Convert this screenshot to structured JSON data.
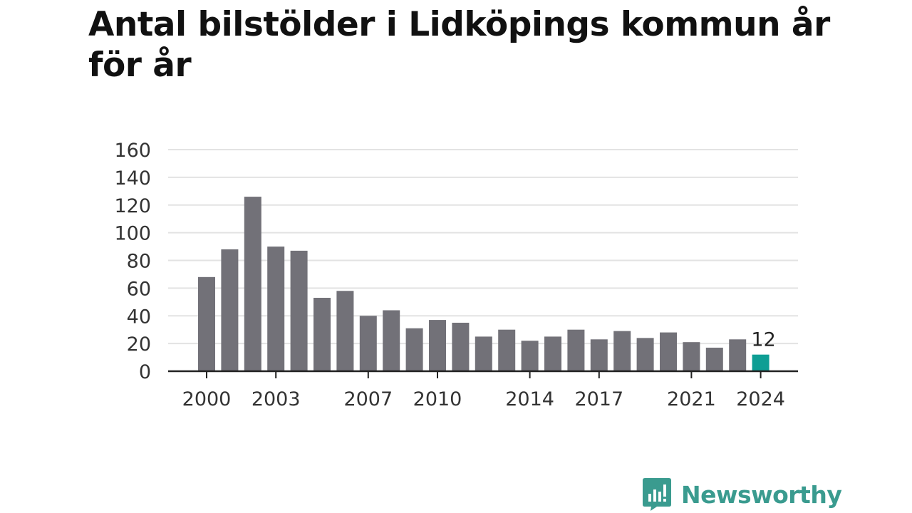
{
  "colors": {
    "bar": "#727178",
    "highlight": "#0e9e94",
    "grid": "#e3e3e3",
    "axis": "#222222",
    "brand": "#3a9b8f"
  },
  "brand": {
    "name": "Newsworthy",
    "icon": "newsworthy-logo-icon"
  },
  "chart_data": {
    "type": "bar",
    "title": "Antal bilstölder i Lidköpings kommun år för år",
    "xlabel": "",
    "ylabel": "",
    "ylim": [
      0,
      160
    ],
    "yticks": [
      0,
      20,
      40,
      60,
      80,
      100,
      120,
      140,
      160
    ],
    "grid": true,
    "legend": "none",
    "categories": [
      "2000",
      "2001",
      "2002",
      "2003",
      "2004",
      "2005",
      "2006",
      "2007",
      "2008",
      "2009",
      "2010",
      "2011",
      "2012",
      "2013",
      "2014",
      "2015",
      "2016",
      "2017",
      "2018",
      "2019",
      "2020",
      "2021",
      "2022",
      "2023",
      "2024"
    ],
    "values": [
      68,
      88,
      126,
      90,
      87,
      53,
      58,
      40,
      44,
      31,
      37,
      35,
      25,
      30,
      22,
      25,
      30,
      23,
      29,
      24,
      28,
      21,
      17,
      23,
      12
    ],
    "xtick_labels": [
      "2000",
      "2003",
      "2007",
      "2010",
      "2014",
      "2017",
      "2021",
      "2024"
    ],
    "highlight": {
      "category": "2024",
      "label": "12"
    }
  }
}
